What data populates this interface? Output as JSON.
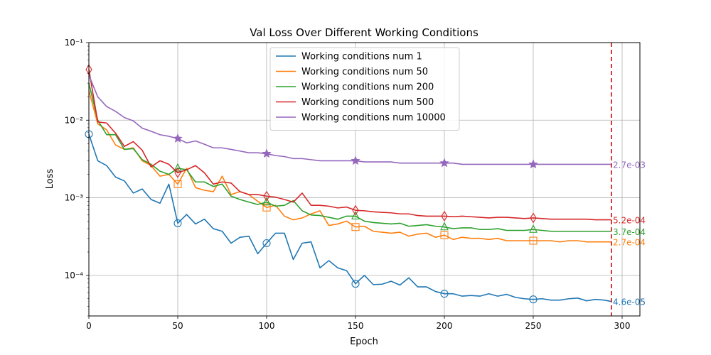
{
  "chart_data": {
    "type": "line",
    "title": "Val Loss Over Different Working Conditions",
    "xlabel": "Epoch",
    "ylabel": "Loss",
    "xlim": [
      0,
      310
    ],
    "ylim": [
      3e-05,
      0.1
    ],
    "yscale": "log",
    "grid": true,
    "legend_position": "upper-center",
    "x_ticks": [
      0,
      50,
      100,
      150,
      200,
      250,
      300
    ],
    "x_tick_labels": [
      "0",
      "50",
      "100",
      "150",
      "200",
      "250",
      "300"
    ],
    "y_ticks": [
      0.0001,
      0.001,
      0.01,
      0.1
    ],
    "y_tick_labels": [
      "10⁻⁴",
      "10⁻³",
      "10⁻²",
      "10⁻¹"
    ],
    "vline": {
      "x": 294,
      "color": "#d62728",
      "style": "dashed"
    },
    "series": [
      {
        "name": "Working conditions num 1",
        "color": "#1f77b4",
        "marker": "circle",
        "x": [
          0,
          5,
          10,
          15,
          20,
          25,
          30,
          35,
          40,
          45,
          50,
          55,
          60,
          65,
          70,
          75,
          80,
          85,
          90,
          95,
          100,
          105,
          110,
          115,
          120,
          125,
          130,
          135,
          140,
          145,
          150,
          155,
          160,
          165,
          170,
          175,
          180,
          185,
          190,
          195,
          200,
          205,
          210,
          215,
          220,
          225,
          230,
          235,
          240,
          245,
          250,
          255,
          260,
          265,
          270,
          275,
          280,
          285,
          290,
          294
        ],
        "values": [
          0.0066,
          0.003,
          0.0026,
          0.00185,
          0.00165,
          0.00115,
          0.0013,
          0.00095,
          0.00085,
          0.0015,
          0.00047,
          0.00061,
          0.00046,
          0.00053,
          0.0004,
          0.00037,
          0.00026,
          0.00031,
          0.00032,
          0.00019,
          0.00026,
          0.00035,
          0.00035,
          0.00016,
          0.00026,
          0.00027,
          0.000125,
          0.000155,
          0.000125,
          0.000115,
          7.8e-05,
          0.0001,
          7.6e-05,
          7.7e-05,
          8.4e-05,
          7.5e-05,
          9.3e-05,
          7.1e-05,
          7.1e-05,
          6.2e-05,
          5.8e-05,
          5.8e-05,
          5.4e-05,
          5.5e-05,
          5.4e-05,
          5.8e-05,
          5.4e-05,
          5.7e-05,
          5.2e-05,
          5e-05,
          4.9e-05,
          5e-05,
          4.8e-05,
          4.8e-05,
          5e-05,
          5.1e-05,
          4.7e-05,
          4.9e-05,
          4.8e-05,
          4.6e-05
        ],
        "marker_x": [
          0,
          50,
          100,
          150,
          200,
          250
        ],
        "final_label": "4.6e-05"
      },
      {
        "name": "Working conditions num 50",
        "color": "#ff7f0e",
        "marker": "square",
        "x": [
          0,
          5,
          10,
          15,
          20,
          25,
          30,
          35,
          40,
          45,
          50,
          55,
          60,
          65,
          70,
          75,
          80,
          85,
          90,
          95,
          100,
          105,
          110,
          115,
          120,
          125,
          130,
          135,
          140,
          145,
          150,
          155,
          160,
          165,
          170,
          175,
          180,
          185,
          190,
          195,
          200,
          205,
          210,
          215,
          220,
          225,
          230,
          235,
          240,
          245,
          250,
          255,
          260,
          265,
          270,
          275,
          280,
          285,
          290,
          294
        ],
        "values": [
          0.024,
          0.009,
          0.0075,
          0.0048,
          0.0042,
          0.0044,
          0.003,
          0.0026,
          0.0019,
          0.002,
          0.0015,
          0.0024,
          0.00135,
          0.00125,
          0.0012,
          0.0019,
          0.0011,
          0.0012,
          0.0011,
          0.0009,
          0.00075,
          0.0008,
          0.00058,
          0.00052,
          0.00055,
          0.00062,
          0.00068,
          0.00044,
          0.00046,
          0.0005,
          0.00042,
          0.00043,
          0.00037,
          0.00036,
          0.00035,
          0.00036,
          0.00032,
          0.00034,
          0.00035,
          0.00031,
          0.00033,
          0.00029,
          0.00031,
          0.0003,
          0.0003,
          0.00029,
          0.0003,
          0.00028,
          0.00028,
          0.00028,
          0.00028,
          0.00028,
          0.00028,
          0.00027,
          0.00028,
          0.00028,
          0.00027,
          0.00027,
          0.00027,
          0.00027
        ],
        "marker_x": [
          50,
          100,
          150,
          200,
          250
        ],
        "final_label": "2.7e-04"
      },
      {
        "name": "Working conditions num 200",
        "color": "#2ca02c",
        "marker": "triangle",
        "x": [
          0,
          5,
          10,
          15,
          20,
          25,
          30,
          35,
          40,
          45,
          50,
          55,
          60,
          65,
          70,
          75,
          80,
          85,
          90,
          95,
          100,
          105,
          110,
          115,
          120,
          125,
          130,
          135,
          140,
          145,
          150,
          155,
          160,
          165,
          170,
          175,
          180,
          185,
          190,
          195,
          200,
          205,
          210,
          215,
          220,
          225,
          230,
          235,
          240,
          245,
          250,
          255,
          260,
          265,
          270,
          275,
          280,
          285,
          290,
          294
        ],
        "values": [
          0.03,
          0.01,
          0.0065,
          0.0065,
          0.0042,
          0.0043,
          0.0031,
          0.0027,
          0.0022,
          0.002,
          0.0024,
          0.0023,
          0.0016,
          0.0016,
          0.0014,
          0.0015,
          0.00105,
          0.00095,
          0.00088,
          0.00082,
          0.00088,
          0.00078,
          0.0008,
          0.00092,
          0.00068,
          0.0006,
          0.00059,
          0.00056,
          0.00053,
          0.00058,
          0.00058,
          0.0005,
          0.00048,
          0.00047,
          0.00046,
          0.00047,
          0.00043,
          0.00044,
          0.00045,
          0.00043,
          0.00042,
          0.0004,
          0.00041,
          0.00041,
          0.00039,
          0.00039,
          0.0004,
          0.00038,
          0.00038,
          0.00038,
          0.00039,
          0.00038,
          0.00037,
          0.00037,
          0.00037,
          0.00037,
          0.00037,
          0.00037,
          0.00037,
          0.00037
        ],
        "marker_x": [
          50,
          100,
          150,
          200,
          250
        ],
        "final_label": "3.7e-04"
      },
      {
        "name": "Working conditions num 500",
        "color": "#d62728",
        "marker": "diamond",
        "x": [
          0,
          5,
          10,
          15,
          20,
          25,
          30,
          35,
          40,
          45,
          50,
          55,
          60,
          65,
          70,
          75,
          80,
          85,
          90,
          95,
          100,
          105,
          110,
          115,
          120,
          125,
          130,
          135,
          140,
          145,
          150,
          155,
          160,
          165,
          170,
          175,
          180,
          185,
          190,
          195,
          200,
          205,
          210,
          215,
          220,
          225,
          230,
          235,
          240,
          245,
          250,
          255,
          260,
          265,
          270,
          275,
          280,
          285,
          290,
          294
        ],
        "values": [
          0.045,
          0.0095,
          0.0092,
          0.0068,
          0.0046,
          0.0053,
          0.0041,
          0.0025,
          0.003,
          0.0027,
          0.0021,
          0.0023,
          0.0026,
          0.0021,
          0.0015,
          0.0016,
          0.00155,
          0.0012,
          0.0011,
          0.0011,
          0.00105,
          0.00102,
          0.00095,
          0.00088,
          0.00115,
          0.0008,
          0.0008,
          0.00078,
          0.00074,
          0.00076,
          0.00069,
          0.00068,
          0.00066,
          0.00065,
          0.00064,
          0.00062,
          0.00062,
          0.00059,
          0.00058,
          0.00058,
          0.00058,
          0.00057,
          0.00058,
          0.00057,
          0.00056,
          0.00055,
          0.00056,
          0.00056,
          0.00055,
          0.00054,
          0.00055,
          0.00054,
          0.00053,
          0.00053,
          0.00053,
          0.00053,
          0.00053,
          0.00052,
          0.00052,
          0.00052
        ],
        "marker_x": [
          0,
          50,
          100,
          150,
          200,
          250
        ],
        "final_label": "5.2e-04"
      },
      {
        "name": "Working conditions num 10000",
        "color": "#9467bd",
        "marker": "star",
        "x": [
          0,
          5,
          10,
          15,
          20,
          25,
          30,
          35,
          40,
          45,
          50,
          55,
          60,
          65,
          70,
          75,
          80,
          85,
          90,
          95,
          100,
          105,
          110,
          115,
          120,
          125,
          130,
          135,
          140,
          145,
          150,
          155,
          160,
          165,
          170,
          175,
          180,
          185,
          190,
          195,
          200,
          205,
          210,
          215,
          220,
          225,
          230,
          235,
          240,
          245,
          250,
          255,
          260,
          265,
          270,
          275,
          280,
          285,
          290,
          294
        ],
        "values": [
          0.038,
          0.02,
          0.015,
          0.013,
          0.0108,
          0.0098,
          0.0079,
          0.0072,
          0.0065,
          0.0062,
          0.0058,
          0.0051,
          0.0054,
          0.0049,
          0.0044,
          0.0044,
          0.0042,
          0.004,
          0.0038,
          0.0038,
          0.0037,
          0.0035,
          0.0034,
          0.0032,
          0.0032,
          0.0031,
          0.003,
          0.003,
          0.003,
          0.003,
          0.003,
          0.0029,
          0.0029,
          0.0029,
          0.0029,
          0.0028,
          0.0028,
          0.0028,
          0.0028,
          0.0028,
          0.0028,
          0.0028,
          0.0027,
          0.0027,
          0.0027,
          0.0027,
          0.0027,
          0.0027,
          0.0027,
          0.0027,
          0.0027,
          0.0027,
          0.0027,
          0.0027,
          0.0027,
          0.0027,
          0.0027,
          0.0027,
          0.0027,
          0.0027
        ],
        "marker_x": [
          50,
          100,
          150,
          200,
          250
        ],
        "final_label": "2.7e-03"
      }
    ]
  }
}
